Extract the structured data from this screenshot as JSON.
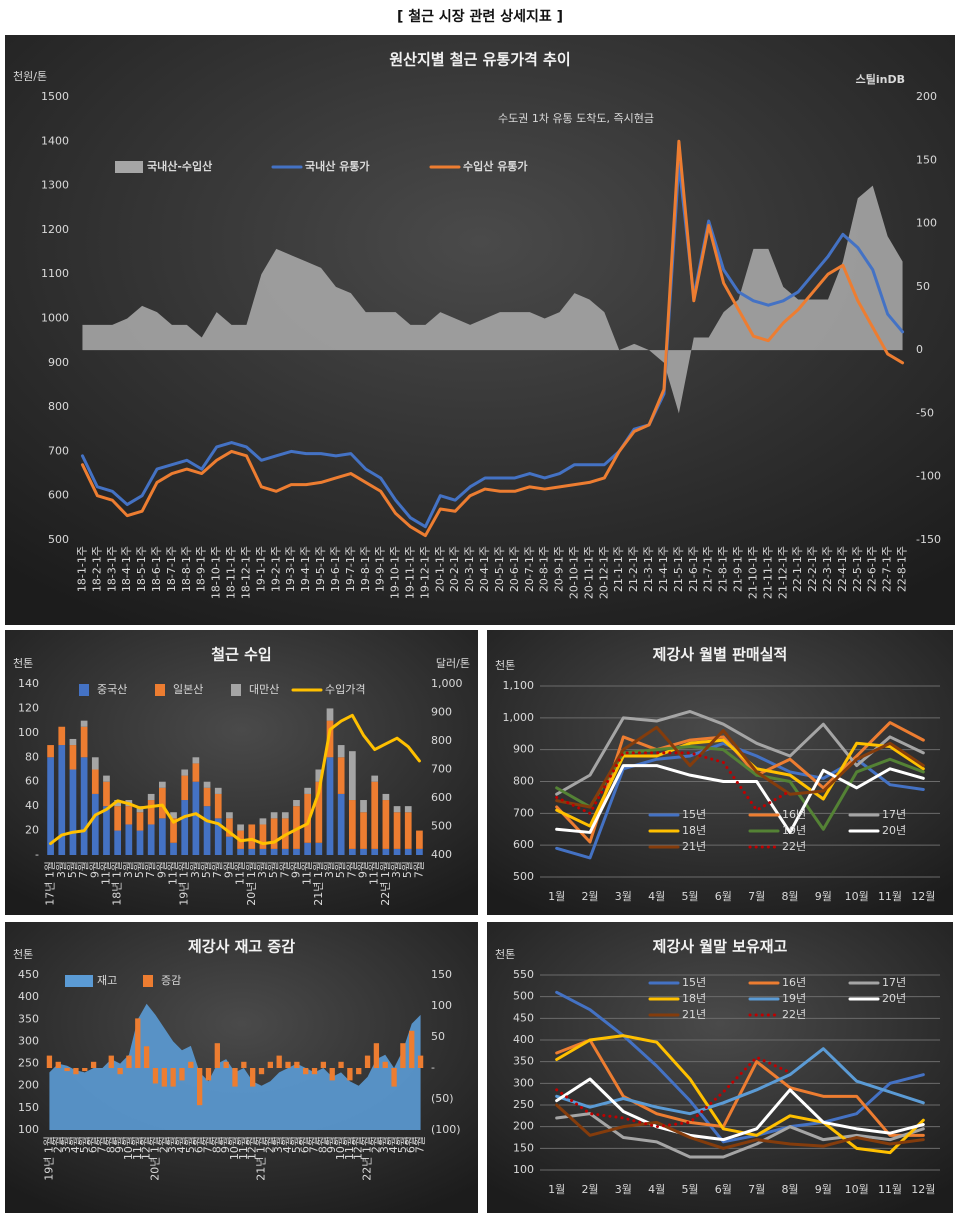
{
  "page_title": "[ 철근 시장 관련 상세지표 ]",
  "chart_data": [
    {
      "type": "line",
      "title": "원산지별 철근 유통가격 추이",
      "subtitle": "수도권 1차 유통 도착도, 즉시현금",
      "logo": "스틸inDB",
      "y_unit": "천원/톤",
      "legend": "upper left",
      "grid": false,
      "categories": [
        "18-1-1주",
        "18-2-1주",
        "18-3-1주",
        "18-4-1주",
        "18-5-1주",
        "18-6-1주",
        "18-7-1주",
        "18-8-1주",
        "18-9-1주",
        "18-10-1주",
        "18-11-1주",
        "18-12-1주",
        "19-1-1주",
        "19-2-1주",
        "19-3-1주",
        "19-4-1주",
        "19-5-1주",
        "19-6-1주",
        "19-7-1주",
        "19-8-1주",
        "19-9-1주",
        "19-10-1주",
        "19-11-1주",
        "19-12-1주",
        "20-1-1주",
        "20-2-1주",
        "20-3-1주",
        "20-4-1주",
        "20-5-1주",
        "20-6-1주",
        "20-7-1주",
        "20-8-1주",
        "20-9-1주",
        "20-10-1주",
        "20-11-1주",
        "20-12-1주",
        "21-1-1주",
        "21-2-1주",
        "21-3-1주",
        "21-4-1주",
        "21-5-1주",
        "21-6-1주",
        "21-7-1주",
        "21-8-1주",
        "21-9-1주",
        "21-10-1주",
        "21-11-1주",
        "21-12-1주",
        "22-1-1주",
        "22-2-1주",
        "22-3-1주",
        "22-4-1주",
        "22-5-1주",
        "22-6-1주",
        "22-7-1주",
        "22-8-1주"
      ],
      "series": [
        {
          "name": "국내산-수입산",
          "kind": "area",
          "axis": "y2",
          "color": "#a6a6a6",
          "values": [
            20,
            20,
            20,
            25,
            35,
            30,
            20,
            20,
            10,
            30,
            20,
            20,
            60,
            80,
            75,
            70,
            65,
            50,
            45,
            30,
            30,
            30,
            20,
            20,
            30,
            25,
            20,
            25,
            30,
            30,
            30,
            25,
            30,
            45,
            40,
            30,
            0,
            5,
            0,
            -10,
            -50,
            10,
            10,
            30,
            40,
            80,
            80,
            50,
            40,
            40,
            40,
            70,
            120,
            130,
            90,
            70
          ]
        },
        {
          "name": "국내산 유통가",
          "kind": "line",
          "color": "#4472c4",
          "values": [
            690,
            620,
            610,
            580,
            600,
            660,
            670,
            680,
            660,
            710,
            720,
            710,
            680,
            690,
            700,
            695,
            695,
            690,
            695,
            660,
            640,
            590,
            550,
            530,
            600,
            590,
            620,
            640,
            640,
            640,
            650,
            640,
            650,
            670,
            670,
            670,
            700,
            750,
            760,
            830,
            1350,
            1050,
            1220,
            1110,
            1060,
            1040,
            1030,
            1040,
            1060,
            1100,
            1140,
            1190,
            1160,
            1110,
            1010,
            970
          ]
        },
        {
          "name": "수입산 유통가",
          "kind": "line",
          "color": "#ed7d31",
          "values": [
            670,
            600,
            590,
            555,
            565,
            630,
            650,
            660,
            650,
            680,
            700,
            690,
            620,
            610,
            625,
            625,
            630,
            640,
            650,
            630,
            610,
            560,
            530,
            510,
            570,
            565,
            600,
            615,
            610,
            610,
            620,
            615,
            620,
            625,
            630,
            640,
            700,
            745,
            760,
            840,
            1400,
            1040,
            1210,
            1080,
            1020,
            960,
            950,
            990,
            1020,
            1060,
            1100,
            1120,
            1040,
            980,
            920,
            900
          ]
        }
      ],
      "ylim": [
        500,
        1500
      ],
      "yticks": [
        500,
        600,
        700,
        800,
        900,
        1000,
        1100,
        1200,
        1300,
        1400,
        1500
      ],
      "y2lim": [
        -150,
        200
      ],
      "y2ticks": [
        -150,
        -100,
        -50,
        0,
        50,
        100,
        150,
        200
      ]
    },
    {
      "type": "bar",
      "title": "철근 수입",
      "y_unit": "천톤",
      "y2_unit": "달러/톤",
      "legend": "top",
      "stacked": true,
      "grid": false,
      "categories": [
        "17년 1월",
        "3월",
        "5월",
        "7월",
        "9월",
        "11월",
        "18년 1월",
        "3월",
        "5월",
        "7월",
        "9월",
        "11월",
        "19년 1월",
        "3월",
        "5월",
        "7월",
        "9월",
        "11월",
        "20년 1월",
        "3월",
        "5월",
        "7월",
        "9월",
        "11월",
        "21년 1월",
        "3월",
        "5월",
        "7월",
        "9월",
        "11월",
        "22년 1월",
        "3월",
        "5월",
        "7월"
      ],
      "series": [
        {
          "name": "중국산",
          "kind": "bar",
          "color": "#4472c4",
          "values": [
            80,
            90,
            70,
            80,
            50,
            40,
            20,
            25,
            20,
            25,
            30,
            10,
            45,
            60,
            40,
            30,
            15,
            5,
            5,
            5,
            5,
            5,
            5,
            10,
            10,
            80,
            50,
            5,
            5,
            5,
            5,
            5,
            5,
            5
          ]
        },
        {
          "name": "일본산",
          "kind": "bar",
          "color": "#ed7d31",
          "values": [
            10,
            15,
            20,
            25,
            20,
            20,
            20,
            15,
            15,
            20,
            25,
            20,
            20,
            15,
            15,
            20,
            15,
            15,
            20,
            20,
            25,
            25,
            35,
            40,
            50,
            30,
            30,
            40,
            30,
            55,
            40,
            30,
            30,
            15
          ]
        },
        {
          "name": "대만산",
          "kind": "bar",
          "color": "#a5a5a5",
          "values": [
            0,
            0,
            5,
            5,
            10,
            5,
            5,
            5,
            5,
            5,
            5,
            5,
            5,
            5,
            5,
            5,
            5,
            5,
            0,
            5,
            5,
            5,
            5,
            5,
            10,
            10,
            10,
            40,
            10,
            5,
            5,
            5,
            5,
            0
          ]
        },
        {
          "name": "수입가격",
          "kind": "line",
          "axis": "y2",
          "color": "#ffc000",
          "values": [
            440,
            470,
            480,
            485,
            540,
            560,
            590,
            580,
            565,
            570,
            575,
            515,
            535,
            545,
            520,
            510,
            480,
            450,
            455,
            440,
            445,
            470,
            490,
            510,
            620,
            840,
            870,
            890,
            820,
            770,
            790,
            810,
            780,
            730
          ]
        }
      ],
      "ylim": [
        0,
        140
      ],
      "yticks": [
        {
          "value": 0,
          "label": "-"
        },
        20,
        40,
        60,
        80,
        100,
        120,
        140
      ],
      "y2lim": [
        400,
        1000
      ],
      "y2ticks": [
        400,
        500,
        600,
        700,
        800,
        900,
        {
          "value": 1000,
          "label": "1,000"
        }
      ]
    },
    {
      "type": "line",
      "title": "제강사 월별 판매실적",
      "y_unit": "천톤",
      "legend": "lower right",
      "grid": true,
      "categories": [
        "1월",
        "2월",
        "3월",
        "4월",
        "5월",
        "6월",
        "7월",
        "8월",
        "9월",
        "10월",
        "11월",
        "12월"
      ],
      "series": [
        {
          "name": "15년",
          "color": "#4472c4",
          "values": [
            590,
            560,
            840,
            870,
            880,
            920,
            880,
            830,
            810,
            870,
            790,
            775
          ]
        },
        {
          "name": "16년",
          "color": "#ed7d31",
          "values": [
            720,
            610,
            940,
            900,
            930,
            940,
            820,
            870,
            780,
            880,
            985,
            930
          ]
        },
        {
          "name": "17년",
          "color": "#a5a5a5",
          "values": [
            760,
            820,
            1000,
            990,
            1020,
            980,
            920,
            880,
            980,
            850,
            940,
            890
          ]
        },
        {
          "name": "18년",
          "color": "#ffc000",
          "values": [
            710,
            660,
            880,
            880,
            920,
            930,
            840,
            820,
            745,
            920,
            910,
            840
          ]
        },
        {
          "name": "19년",
          "color": "#548235",
          "values": [
            780,
            720,
            890,
            900,
            910,
            900,
            820,
            800,
            650,
            830,
            870,
            830
          ]
        },
        {
          "name": "20년",
          "color": "#ffffff",
          "values": [
            650,
            640,
            850,
            850,
            820,
            800,
            800,
            640,
            835,
            780,
            840,
            810
          ]
        },
        {
          "name": "21년",
          "color": "#843c0c",
          "values": [
            740,
            720,
            900,
            970,
            850,
            960,
            830,
            760,
            770,
            870,
            920,
            850
          ]
        },
        {
          "name": "22년",
          "color": "#c00000",
          "dash": true,
          "values": [
            750,
            700,
            890,
            890,
            890,
            860,
            710,
            770,
            null,
            null,
            null,
            null
          ]
        }
      ],
      "ylim": [
        500,
        1100
      ],
      "yticks": [
        500,
        600,
        700,
        800,
        900,
        {
          "value": 1000,
          "label": "1,000"
        },
        {
          "value": 1100,
          "label": "1,100"
        }
      ]
    },
    {
      "type": "area",
      "title": "제강사 재고 증감",
      "y_unit": "천톤",
      "legend": "top",
      "grid": false,
      "categories": [
        "19년 1월",
        "2월",
        "3월",
        "4월",
        "5월",
        "6월",
        "7월",
        "8월",
        "9월",
        "10월",
        "11월",
        "12월",
        "20년 1월",
        "2월",
        "3월",
        "4월",
        "5월",
        "6월",
        "7월",
        "8월",
        "9월",
        "10월",
        "11월",
        "12월",
        "21년 1월",
        "2월",
        "3월",
        "4월",
        "5월",
        "6월",
        "7월",
        "8월",
        "9월",
        "10월",
        "11월",
        "12월",
        "22년 1월",
        "2월",
        "3월",
        "4월",
        "5월",
        "6월",
        "7월"
      ],
      "series": [
        {
          "name": "재고",
          "kind": "area",
          "color": "#5b9bd5",
          "values": [
            230,
            250,
            245,
            235,
            230,
            240,
            240,
            260,
            250,
            270,
            350,
            385,
            360,
            330,
            300,
            280,
            290,
            230,
            210,
            250,
            260,
            230,
            240,
            210,
            200,
            210,
            230,
            240,
            250,
            240,
            230,
            240,
            220,
            230,
            210,
            200,
            220,
            260,
            270,
            240,
            280,
            340,
            360
          ]
        },
        {
          "name": "증감",
          "kind": "bar",
          "axis": "y2",
          "color": "#ed7d31",
          "values": [
            20,
            10,
            -5,
            -10,
            -5,
            10,
            0,
            20,
            -10,
            20,
            80,
            35,
            -25,
            -30,
            -30,
            -20,
            10,
            -60,
            -20,
            40,
            10,
            -30,
            10,
            -30,
            -10,
            10,
            20,
            10,
            10,
            -10,
            -10,
            10,
            -20,
            10,
            -20,
            -10,
            20,
            40,
            10,
            -30,
            40,
            60,
            20
          ]
        }
      ],
      "ylim": [
        100,
        450
      ],
      "yticks": [
        100,
        150,
        200,
        250,
        300,
        350,
        400,
        450
      ],
      "y2lim": [
        -100,
        150
      ],
      "y2ticks": [
        {
          "value": -100,
          "label": "(100)"
        },
        {
          "value": -50,
          "label": "(50)"
        },
        {
          "value": 0,
          "label": "-"
        },
        50,
        100,
        150
      ]
    },
    {
      "type": "line",
      "title": "제강사 월말 보유재고",
      "y_unit": "천톤",
      "legend": "upper right",
      "grid": true,
      "categories": [
        "1월",
        "2월",
        "3월",
        "4월",
        "5월",
        "6월",
        "7월",
        "8월",
        "9월",
        "10월",
        "11월",
        "12월"
      ],
      "series": [
        {
          "name": "15년",
          "color": "#4472c4",
          "values": [
            510,
            470,
            410,
            340,
            260,
            165,
            180,
            200,
            210,
            230,
            300,
            320
          ]
        },
        {
          "name": "16년",
          "color": "#ed7d31",
          "values": [
            370,
            400,
            270,
            230,
            210,
            200,
            350,
            290,
            270,
            270,
            180,
            180
          ]
        },
        {
          "name": "17년",
          "color": "#a5a5a5",
          "values": [
            220,
            230,
            175,
            165,
            130,
            130,
            160,
            200,
            170,
            180,
            170,
            195
          ]
        },
        {
          "name": "18년",
          "color": "#ffc000",
          "values": [
            355,
            400,
            410,
            395,
            310,
            195,
            180,
            225,
            210,
            150,
            140,
            215
          ]
        },
        {
          "name": "19년",
          "color": "#5b9bd5",
          "values": [
            270,
            245,
            265,
            245,
            230,
            255,
            285,
            320,
            380,
            305,
            280,
            255
          ]
        },
        {
          "name": "20년",
          "color": "#ffffff",
          "values": [
            260,
            310,
            235,
            200,
            180,
            170,
            195,
            285,
            210,
            195,
            185,
            205
          ]
        },
        {
          "name": "21년",
          "color": "#843c0c",
          "values": [
            250,
            180,
            200,
            210,
            175,
            150,
            170,
            160,
            155,
            175,
            160,
            170
          ]
        },
        {
          "name": "22년",
          "color": "#c00000",
          "dash": true,
          "values": [
            285,
            230,
            220,
            200,
            210,
            280,
            360,
            325,
            null,
            null,
            null,
            null
          ]
        }
      ],
      "ylim": [
        100,
        550
      ],
      "yticks": [
        100,
        150,
        200,
        250,
        300,
        350,
        400,
        450,
        500,
        550
      ]
    }
  ]
}
